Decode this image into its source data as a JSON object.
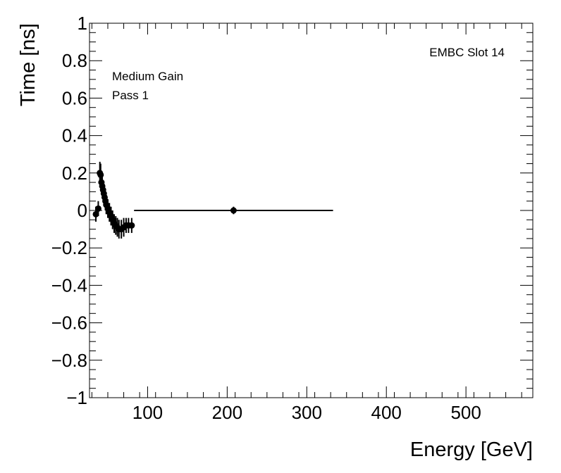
{
  "chart_data": {
    "type": "scatter",
    "xlabel": "Energy [GeV]",
    "ylabel": "Time [ns]",
    "xlim": [
      27,
      584
    ],
    "ylim": [
      -1,
      1
    ],
    "x_ticks": [
      100,
      200,
      300,
      400,
      500
    ],
    "x_tick_labels": [
      "100",
      "200",
      "300",
      "400",
      "500"
    ],
    "y_ticks": [
      -1,
      -0.8,
      -0.6,
      -0.4,
      -0.2,
      0,
      0.2,
      0.4,
      0.6,
      0.8,
      1
    ],
    "y_tick_labels": [
      "−1",
      "−0.8",
      "−0.6",
      "−0.4",
      "−0.2",
      "0",
      "0.2",
      "0.4",
      "0.6",
      "0.8",
      "1"
    ],
    "grid": false,
    "annotations": {
      "label": "EMBC Slot 14",
      "gain": "Medium Gain",
      "pass": "Pass 1"
    },
    "series": [
      {
        "points": [
          {
            "x": 35,
            "y": -0.02,
            "xerr": 1,
            "yerr": 0.04
          },
          {
            "x": 38,
            "y": 0.01,
            "xerr": 1,
            "yerr": 0.04
          },
          {
            "x": 40,
            "y": 0.2,
            "xerr": 1,
            "yerr": 0.06
          },
          {
            "x": 41,
            "y": 0.19,
            "xerr": 1,
            "yerr": 0.06
          },
          {
            "x": 42,
            "y": 0.15,
            "xerr": 1,
            "yerr": 0.05
          },
          {
            "x": 43,
            "y": 0.13,
            "xerr": 1,
            "yerr": 0.05
          },
          {
            "x": 44,
            "y": 0.11,
            "xerr": 1,
            "yerr": 0.05
          },
          {
            "x": 45,
            "y": 0.09,
            "xerr": 1,
            "yerr": 0.05
          },
          {
            "x": 46,
            "y": 0.07,
            "xerr": 1,
            "yerr": 0.05
          },
          {
            "x": 47,
            "y": 0.05,
            "xerr": 1,
            "yerr": 0.05
          },
          {
            "x": 48,
            "y": 0.03,
            "xerr": 1,
            "yerr": 0.05
          },
          {
            "x": 50,
            "y": 0.01,
            "xerr": 1,
            "yerr": 0.05
          },
          {
            "x": 52,
            "y": -0.01,
            "xerr": 1,
            "yerr": 0.05
          },
          {
            "x": 54,
            "y": -0.03,
            "xerr": 1,
            "yerr": 0.05
          },
          {
            "x": 56,
            "y": -0.05,
            "xerr": 1,
            "yerr": 0.05
          },
          {
            "x": 58,
            "y": -0.07,
            "xerr": 1,
            "yerr": 0.05
          },
          {
            "x": 60,
            "y": -0.08,
            "xerr": 1,
            "yerr": 0.05
          },
          {
            "x": 62,
            "y": -0.09,
            "xerr": 1,
            "yerr": 0.05
          },
          {
            "x": 64,
            "y": -0.1,
            "xerr": 1,
            "yerr": 0.05
          },
          {
            "x": 67,
            "y": -0.1,
            "xerr": 1,
            "yerr": 0.05
          },
          {
            "x": 70,
            "y": -0.09,
            "xerr": 1,
            "yerr": 0.05
          },
          {
            "x": 73,
            "y": -0.08,
            "xerr": 1,
            "yerr": 0.04
          },
          {
            "x": 76,
            "y": -0.08,
            "xerr": 1,
            "yerr": 0.04
          },
          {
            "x": 80,
            "y": -0.08,
            "xerr": 1,
            "yerr": 0.04
          },
          {
            "x": 208,
            "y": 0.0,
            "xerr": 125,
            "yerr": 0.02
          }
        ]
      }
    ]
  }
}
